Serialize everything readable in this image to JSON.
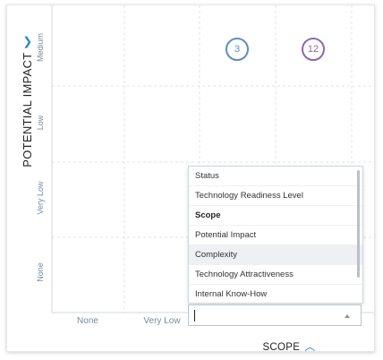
{
  "chart": {
    "y_axis": {
      "title": "POTENTIAL IMPACT",
      "ticks": [
        "Medium",
        "Low",
        "Very Low",
        "None"
      ]
    },
    "x_axis": {
      "title": "SCOPE",
      "ticks": [
        "None",
        "Very Low"
      ]
    },
    "bubbles": [
      {
        "label": "3",
        "color": "#5b8fbd",
        "column": 2,
        "row": "Medium"
      },
      {
        "label": "12",
        "color": "#8d6aa8",
        "column": 3,
        "row": "Medium"
      }
    ]
  },
  "axis_selector": {
    "options": [
      "Status",
      "Technology Readiness Level",
      "Scope",
      "Potential Impact",
      "Complexity",
      "Technology Attractiveness",
      "Internal Know-How"
    ],
    "selected_option": "Scope",
    "hovered_option": "Complexity",
    "input_value": ""
  },
  "icons": {
    "y_axis_toggle": "chevron-down-icon",
    "x_axis_toggle": "chevron-up-icon",
    "combo_arrow": "triangle-up-icon"
  }
}
